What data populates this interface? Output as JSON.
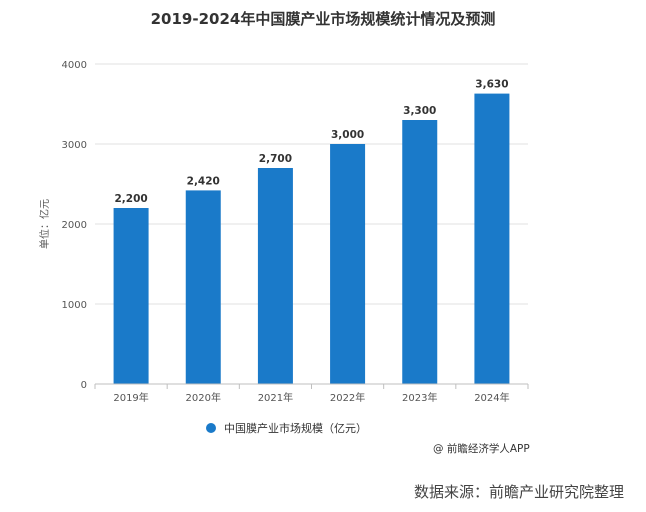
{
  "title": "2019-2024年中国膜产业市场规模统计情况及预测",
  "credit": "@ 前瞻经济学人APP",
  "source": "数据来源：前瞻产业研究院整理",
  "colors": {
    "bar": "#1a7ac9",
    "grid": "#e0e0e0",
    "axis": "#bfbfbf"
  },
  "chart_data": {
    "type": "bar",
    "categories": [
      "2019年",
      "2020年",
      "2021年",
      "2022年",
      "2023年",
      "2024年"
    ],
    "values": [
      2200,
      2420,
      2700,
      3000,
      3300,
      3630
    ],
    "value_labels": [
      "2,200",
      "2,420",
      "2,700",
      "3,000",
      "3,300",
      "3,630"
    ],
    "ylabel": "单位：亿元",
    "ylim": [
      0,
      4000
    ],
    "yticks": [
      0,
      1000,
      2000,
      3000,
      4000
    ],
    "grid": true,
    "legend": {
      "position": "bottom",
      "entries": [
        "中国膜产业市场规模（亿元）"
      ]
    }
  }
}
